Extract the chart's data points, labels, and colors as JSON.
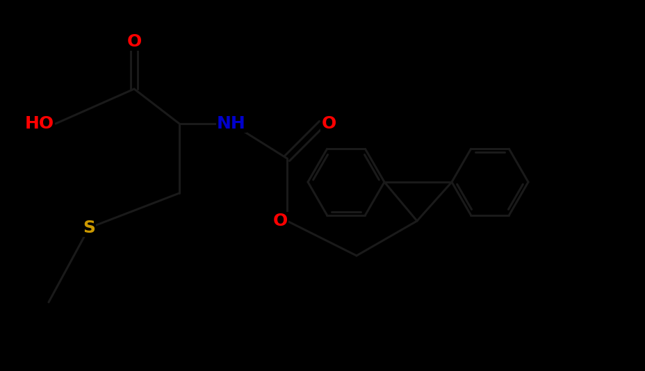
{
  "bg_color": "#000000",
  "bond_color": "#111111",
  "bond_width": 2.2,
  "colors": {
    "O": "#ff0000",
    "N": "#0000cc",
    "S": "#cc9900",
    "C": "#000000"
  },
  "figsize": [
    9.29,
    5.34
  ],
  "dpi": 100,
  "font_size": 18
}
